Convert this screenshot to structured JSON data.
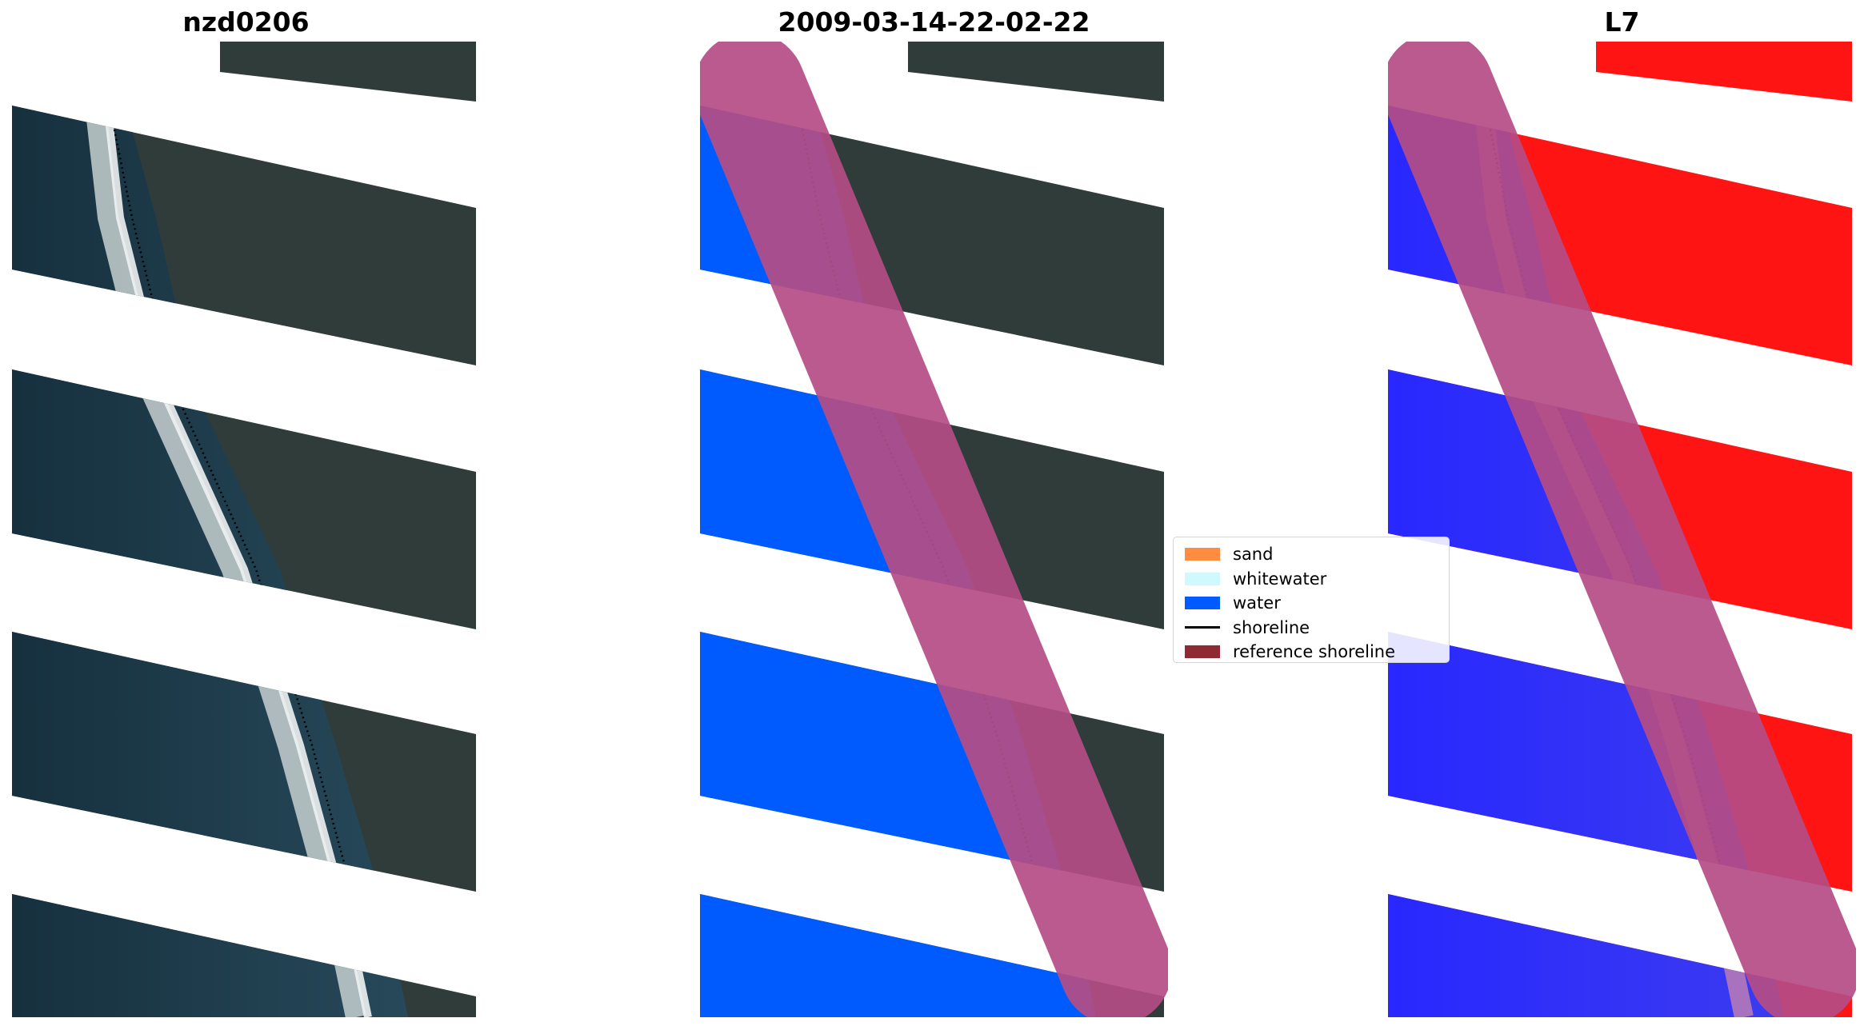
{
  "panels": [
    {
      "id": "rgb",
      "title": "nzd0206"
    },
    {
      "id": "classification",
      "title": "2009-03-14-22-02-22"
    },
    {
      "id": "index",
      "title": "L7"
    }
  ],
  "legend": {
    "items": [
      {
        "label": "sand",
        "kind": "patch",
        "color": "#ff8c40"
      },
      {
        "label": "whitewater",
        "kind": "patch",
        "color": "#cff8ff"
      },
      {
        "label": "water",
        "kind": "patch",
        "color": "#005bff"
      },
      {
        "label": "shoreline",
        "kind": "line",
        "color": "#000000"
      },
      {
        "label": "reference shoreline",
        "kind": "patch",
        "color": "#8f2a34"
      }
    ]
  },
  "colors": {
    "ocean": "#1f3e4e",
    "land": "#2f3c3a",
    "sand_wash": "#d7dede",
    "water_class": "#005bff",
    "land_class": "#2f3c3a",
    "buffer": "#b54d85",
    "index_land": "#ff1414",
    "index_water": "#2424ff"
  }
}
